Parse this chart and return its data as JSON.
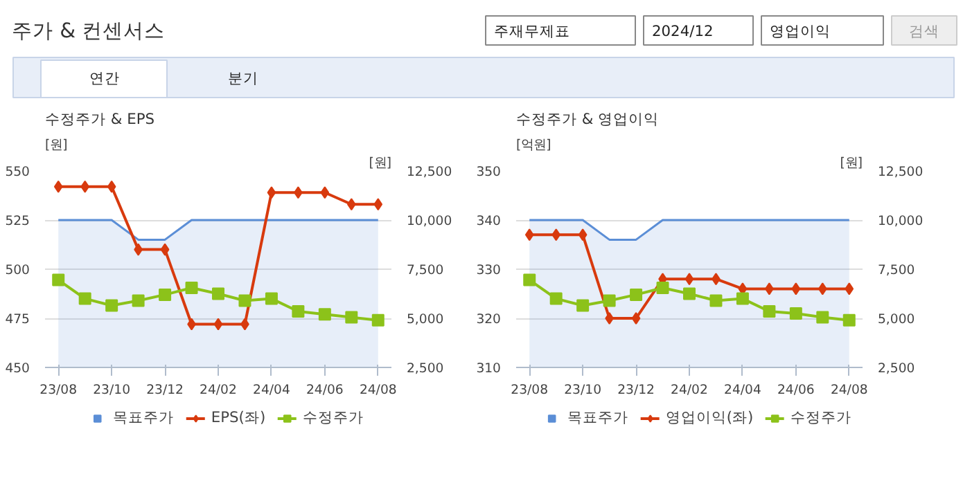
{
  "chart_data": [
    {
      "type": "other",
      "title": "주가 & 컨센서스",
      "annotations": [
        "주재무제표",
        "2024/12",
        "영업이익",
        "검색",
        "연간",
        "분기"
      ]
    },
    {
      "type": "line",
      "title": "수정주가 & EPS",
      "ylabel": "[원]",
      "y2label": "[원]",
      "categories": [
        "23/08",
        null,
        "23/10",
        null,
        "23/12",
        null,
        "24/02",
        null,
        "24/04",
        null,
        "24/06",
        null,
        "24/08"
      ],
      "ylim": [
        450,
        550
      ],
      "yticks": [
        450,
        475,
        500,
        525,
        550
      ],
      "y2lim": [
        2500,
        12500
      ],
      "y2ticks": [
        {
          "value": 2500,
          "label": "2,500"
        },
        {
          "value": 5000,
          "label": "5,000"
        },
        {
          "value": 7500,
          "label": "7,500"
        },
        {
          "value": 10000,
          "label": "10,000"
        },
        {
          "value": 12500,
          "label": "12,500"
        }
      ],
      "grid": "y",
      "legend": "bottom",
      "series": [
        {
          "name": "목표주가",
          "type": "area",
          "axis": "y2",
          "color": "#5b8ed6",
          "marker": "none",
          "values": [
            10000,
            10000,
            10000,
            9000,
            9000,
            10000,
            10000,
            10000,
            10000,
            10000,
            10000,
            10000,
            10000
          ]
        },
        {
          "name": "EPS(좌)",
          "type": "line",
          "color": "#d83a0e",
          "marker": "diamond",
          "values": [
            542,
            542,
            542,
            510,
            510,
            472,
            472,
            472,
            539,
            539,
            539,
            533,
            533
          ]
        },
        {
          "name": "수정주가",
          "type": "line",
          "axis": "y2",
          "color": "#8cc21a",
          "marker": "square",
          "values": [
            6950,
            6000,
            5650,
            5900,
            6200,
            6550,
            6250,
            5900,
            6000,
            5350,
            5200,
            5050,
            4900
          ]
        }
      ]
    },
    {
      "type": "line",
      "title": "수정주가 & 영업이익",
      "ylabel": "[억원]",
      "y2label": "[원]",
      "categories": [
        "23/08",
        null,
        "23/10",
        null,
        "23/12",
        null,
        "24/02",
        null,
        "24/04",
        null,
        "24/06",
        null,
        "24/08"
      ],
      "ylim": [
        310,
        350
      ],
      "yticks": [
        310,
        320,
        330,
        340,
        350
      ],
      "y2lim": [
        2500,
        12500
      ],
      "y2ticks": [
        {
          "value": 2500,
          "label": "2,500"
        },
        {
          "value": 5000,
          "label": "5,000"
        },
        {
          "value": 7500,
          "label": "7,500"
        },
        {
          "value": 10000,
          "label": "10,000"
        },
        {
          "value": 12500,
          "label": "12,500"
        }
      ],
      "grid": "y",
      "legend": "bottom",
      "series": [
        {
          "name": "목표주가",
          "type": "area",
          "axis": "y2",
          "color": "#5b8ed6",
          "marker": "none",
          "values": [
            10000,
            10000,
            10000,
            9000,
            9000,
            10000,
            10000,
            10000,
            10000,
            10000,
            10000,
            10000,
            10000
          ]
        },
        {
          "name": "영업이익(좌)",
          "type": "line",
          "color": "#d83a0e",
          "marker": "diamond",
          "values": [
            337,
            337,
            337,
            320,
            320,
            328,
            328,
            328,
            326,
            326,
            326,
            326,
            326
          ]
        },
        {
          "name": "수정주가",
          "type": "line",
          "axis": "y2",
          "color": "#8cc21a",
          "marker": "square",
          "values": [
            6950,
            6000,
            5650,
            5900,
            6200,
            6550,
            6250,
            5900,
            6000,
            5350,
            5250,
            5050,
            4900
          ]
        }
      ]
    }
  ]
}
